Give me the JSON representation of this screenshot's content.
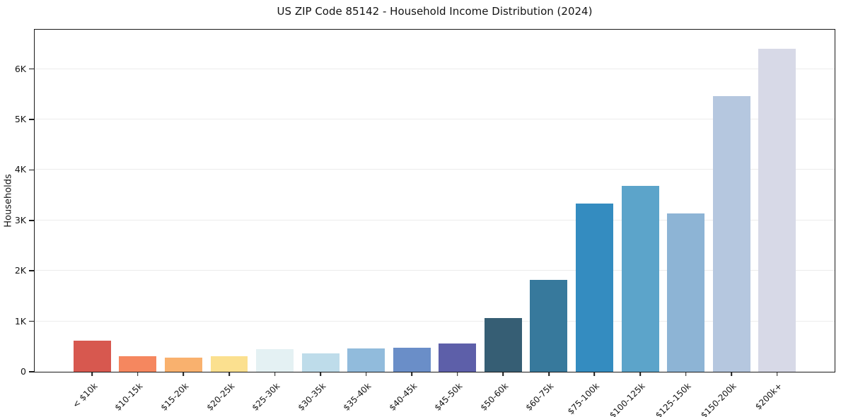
{
  "chart_data": {
    "type": "bar",
    "title": "US ZIP Code 85142 - Household Income Distribution (2024)",
    "xlabel": "",
    "ylabel": "Households",
    "categories": [
      "< $10k",
      "$10-15k",
      "$15-20k",
      "$20-25k",
      "$25-30k",
      "$30-35k",
      "$35-40k",
      "$40-45k",
      "$45-50k",
      "$50-60k",
      "$60-75k",
      "$75-100k",
      "$100-125k",
      "$125-150k",
      "$150-200k",
      "$200k+"
    ],
    "values": [
      620,
      310,
      275,
      310,
      450,
      360,
      465,
      480,
      555,
      1060,
      1815,
      3330,
      3690,
      3140,
      5470,
      6400
    ],
    "bar_colors": [
      "#d7584f",
      "#f5875f",
      "#f9b16e",
      "#fbe08f",
      "#e4f1f3",
      "#bedcea",
      "#91bbdc",
      "#6a8ec8",
      "#5d5fa9",
      "#365e74",
      "#37799c",
      "#348cc0",
      "#5ca4ca",
      "#8db4d5",
      "#b5c7df",
      "#d7d9e7"
    ],
    "ylim": [
      0,
      6780
    ],
    "yticks": [
      {
        "value": 0,
        "label": "0"
      },
      {
        "value": 1000,
        "label": "1K"
      },
      {
        "value": 2000,
        "label": "2K"
      },
      {
        "value": 3000,
        "label": "3K"
      },
      {
        "value": 4000,
        "label": "4K"
      },
      {
        "value": 5000,
        "label": "5K"
      },
      {
        "value": 6000,
        "label": "6K"
      }
    ],
    "grid": "horizontal",
    "grid_color": "#ececec",
    "legend": "none",
    "frame_color": "#1a1a1a",
    "background_color": "#ffffff"
  }
}
